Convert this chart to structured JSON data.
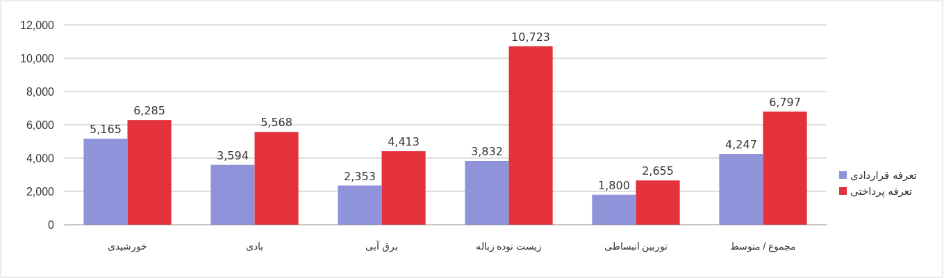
{
  "chart_data": {
    "type": "bar",
    "categories": [
      "خورشیدی",
      "بادی",
      "برق آبی",
      "زیست توده زباله",
      "توربین انبساطی",
      "مجموع / متوسط"
    ],
    "series": [
      {
        "name": "تعرفه قراردادی",
        "color": "#8f93d9",
        "values": [
          5165,
          3594,
          2353,
          3832,
          1800,
          4247
        ],
        "value_labels": [
          "5,165",
          "3,594",
          "2,353",
          "3,832",
          "1,800",
          "4,247"
        ]
      },
      {
        "name": "تعرفه پرداختی",
        "color": "#e3323b",
        "values": [
          6285,
          5568,
          4413,
          10723,
          2655,
          6797
        ],
        "value_labels": [
          "6,285",
          "5,568",
          "4,413",
          "10,723",
          "2,655",
          "6,797"
        ]
      }
    ],
    "ylim": [
      0,
      12000
    ],
    "yticks": [
      {
        "value": 0,
        "label": "0"
      },
      {
        "value": 2000,
        "label": "2,000"
      },
      {
        "value": 4000,
        "label": "4,000"
      },
      {
        "value": 6000,
        "label": "6,000"
      },
      {
        "value": 8000,
        "label": "8,000"
      },
      {
        "value": 10000,
        "label": "10,000"
      },
      {
        "value": 12000,
        "label": "12,000"
      }
    ],
    "grid": "y",
    "legend": "right"
  }
}
